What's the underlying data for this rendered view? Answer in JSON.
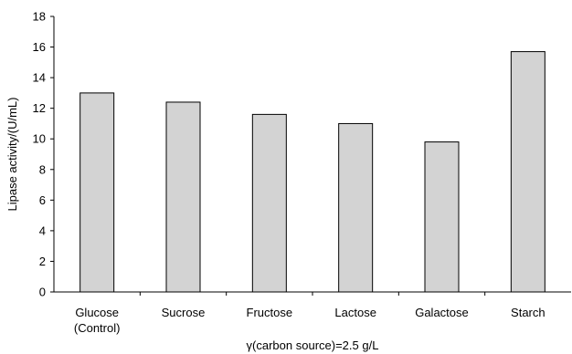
{
  "chart_data": {
    "type": "bar",
    "categories": [
      "Glucose\n(Control)",
      "Sucrose",
      "Fructose",
      "Lactose",
      "Galactose",
      "Starch"
    ],
    "values": [
      13.0,
      12.4,
      11.6,
      11.0,
      9.8,
      15.7
    ],
    "xlabel": "γ(carbon source)=2.5 g/L",
    "ylabel": "Lipase activity/(U/mL)",
    "ylim": [
      0,
      18
    ],
    "yticks": [
      0,
      2,
      4,
      6,
      8,
      10,
      12,
      14,
      16,
      18
    ],
    "grid": false,
    "legend": "none",
    "colors": {
      "bar_fill": "#d3d3d3",
      "bar_stroke": "#000000",
      "axis": "#000000"
    }
  }
}
